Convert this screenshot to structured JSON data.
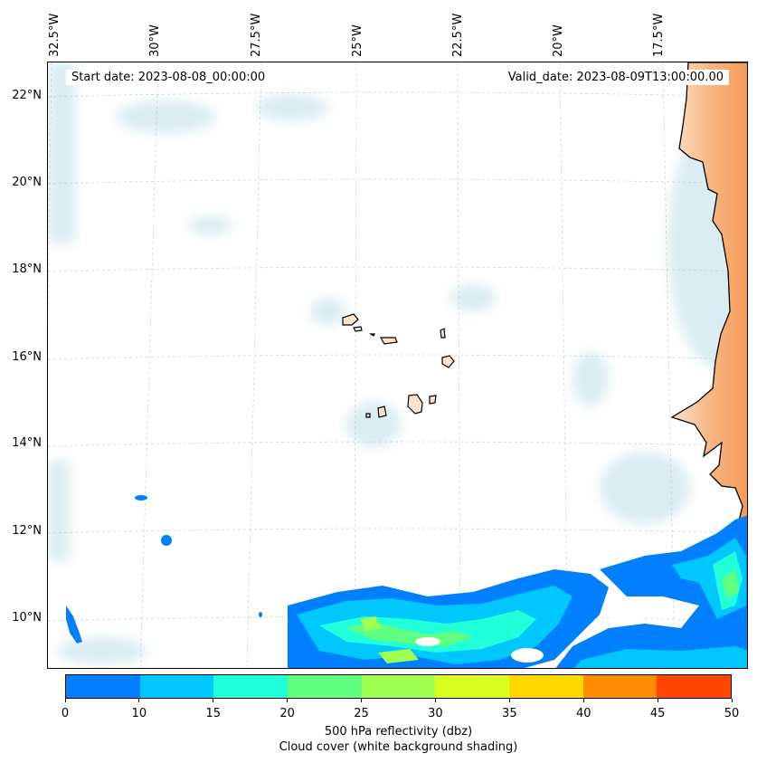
{
  "map": {
    "start_date": "Start date: 2023-08-08_00:00:00",
    "valid_date": "Valid_date: 2023-08-09T13:00:00.00",
    "lon_labels": [
      "32.5°W",
      "30°W",
      "27.5°W",
      "25°W",
      "22.5°W",
      "20°W",
      "17.5°W"
    ],
    "lat_labels": [
      "22°N",
      "20°N",
      "18°N",
      "16°N",
      "14°N",
      "12°N",
      "10°N"
    ],
    "colors": {
      "land": "#f5a566",
      "land_light": "#fbe2cc",
      "cloud": "#cfe7ee",
      "coast": "#000000",
      "grid": "#cccccc"
    }
  },
  "colorbar": {
    "ticks": [
      "0",
      "10",
      "15",
      "20",
      "25",
      "30",
      "35",
      "40",
      "45",
      "50"
    ],
    "colors": [
      "#0080ff",
      "#00c8ff",
      "#20ffd8",
      "#60ff80",
      "#a0ff50",
      "#d8ff20",
      "#ffd800",
      "#ff8c00",
      "#ff4500"
    ],
    "label_line1": "500 hPa reflectivity (dbz)",
    "label_line2": "Cloud cover (white background shading)"
  }
}
